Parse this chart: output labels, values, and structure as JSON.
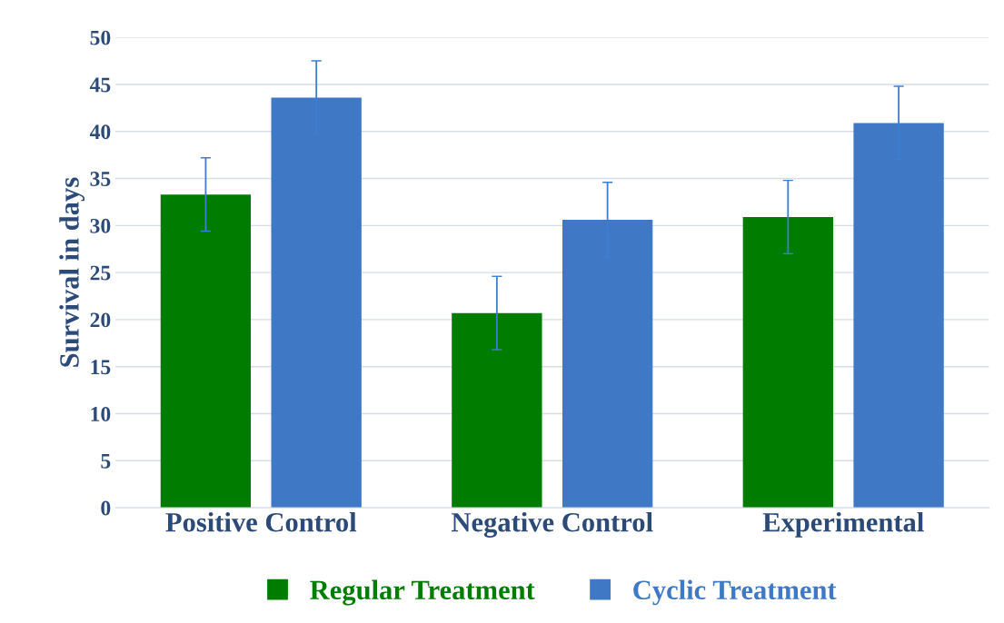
{
  "chart_data": {
    "type": "bar",
    "ylabel": "Survival in days",
    "categories": [
      "Positive Control",
      "Negative Control",
      "Experimental"
    ],
    "series": [
      {
        "name": "Regular Treatment",
        "color": "#007d00",
        "values": [
          33.3,
          20.7,
          30.9
        ],
        "errors": [
          3.9,
          3.9,
          3.9
        ]
      },
      {
        "name": "Cyclic Treatment",
        "color": "#3f78c4",
        "values": [
          43.6,
          30.6,
          40.9
        ],
        "errors": [
          3.9,
          4.0,
          3.9
        ]
      }
    ],
    "ylim": [
      0,
      50
    ],
    "yticks": [
      0,
      5,
      10,
      15,
      20,
      25,
      30,
      35,
      40,
      45,
      50
    ],
    "grid": "y",
    "legend": "bottom"
  }
}
